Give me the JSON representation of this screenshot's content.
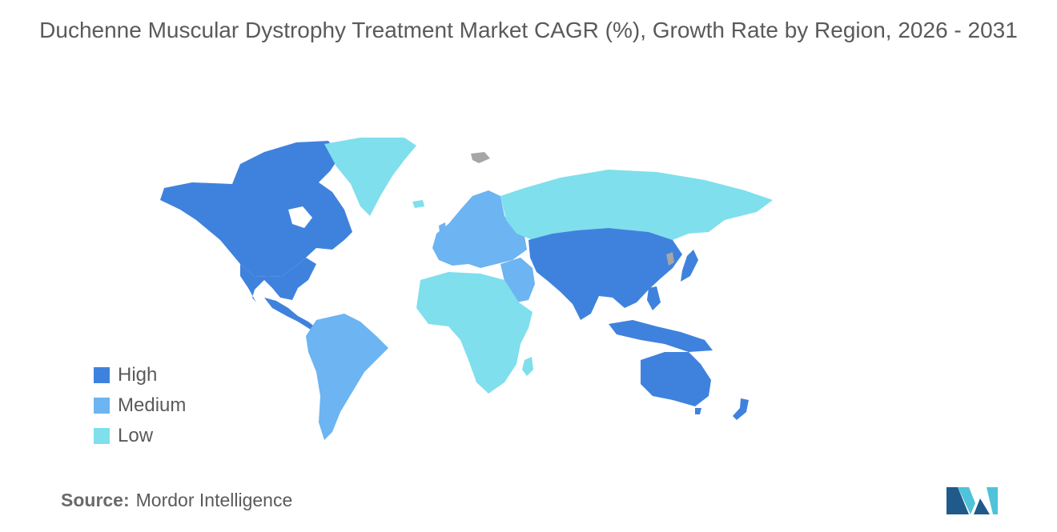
{
  "title": "Duchenne Muscular Dystrophy Treatment Market CAGR (%), Growth Rate by Region, 2026 - 2031",
  "legend": [
    {
      "label": "High",
      "color": "#3f82dd"
    },
    {
      "label": "Medium",
      "color": "#6cb4f2"
    },
    {
      "label": "Low",
      "color": "#7fdfed"
    }
  ],
  "source": {
    "label": "Source:",
    "value": "Mordor Intelligence"
  },
  "colors": {
    "high": "#3f82dd",
    "medium": "#6cb4f2",
    "low": "#7fdfed",
    "no_data": "#a6a6a6",
    "logo_dark": "#1f5a8a",
    "logo_light": "#4fc3d9"
  },
  "regions": [
    {
      "name": "North America",
      "level": "High"
    },
    {
      "name": "Asia-Pacific",
      "level": "High"
    },
    {
      "name": "Europe",
      "level": "Medium"
    },
    {
      "name": "South America",
      "level": "Medium"
    },
    {
      "name": "Middle East and Africa",
      "level": "Low"
    }
  ]
}
